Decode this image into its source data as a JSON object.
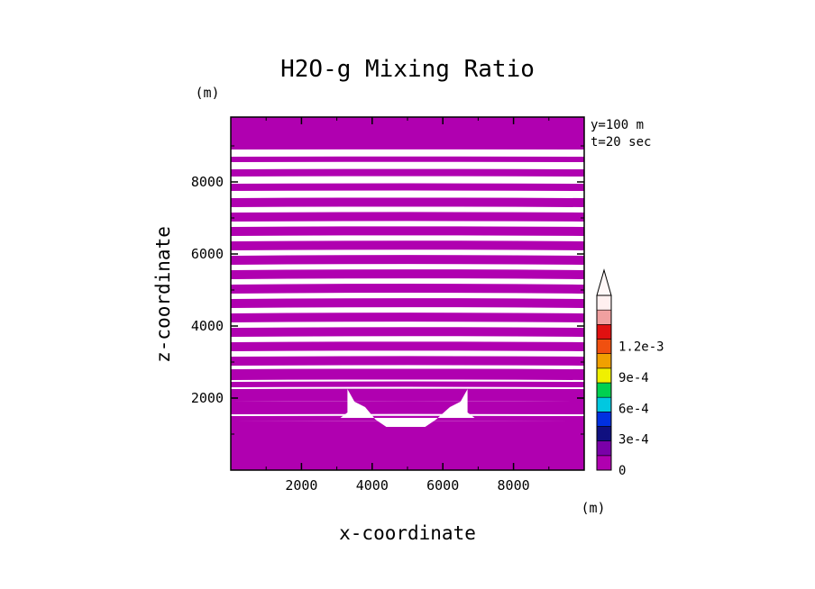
{
  "chart_data": {
    "type": "heatmap",
    "title": "H2O-g Mixing Ratio",
    "xlabel": "x-coordinate",
    "ylabel": "z-coordinate",
    "x_unit": "(m)",
    "y_unit": "(m)",
    "annotations": [
      "y=100 m",
      "t=20 sec"
    ],
    "xlim": [
      0,
      10000
    ],
    "ylim": [
      0,
      9800
    ],
    "x_ticks": [
      2000,
      4000,
      6000,
      8000
    ],
    "y_ticks": [
      2000,
      4000,
      6000,
      8000
    ],
    "x_tick_labels": [
      "2000",
      "4000",
      "6000",
      "8000"
    ],
    "y_tick_labels": [
      "2000",
      "4000",
      "6000",
      "8000"
    ],
    "bands": [
      {
        "z0": 0,
        "z1": 1350
      },
      {
        "z0": 1350,
        "z1": 1500
      },
      {
        "z0": 1550,
        "z1": 1900
      },
      {
        "z0": 1900,
        "z1": 2250
      },
      {
        "z0": 2300,
        "z1": 2450
      },
      {
        "z0": 2500,
        "z1": 2800
      },
      {
        "z0": 2900,
        "z1": 3150
      },
      {
        "z0": 3300,
        "z1": 3550
      },
      {
        "z0": 3700,
        "z1": 3950
      },
      {
        "z0": 4100,
        "z1": 4350
      },
      {
        "z0": 4500,
        "z1": 4750
      },
      {
        "z0": 4900,
        "z1": 5150
      },
      {
        "z0": 5300,
        "z1": 5550
      },
      {
        "z0": 5700,
        "z1": 5950
      },
      {
        "z0": 6100,
        "z1": 6350
      },
      {
        "z0": 6500,
        "z1": 6750
      },
      {
        "z0": 6900,
        "z1": 7150
      },
      {
        "z0": 7300,
        "z1": 7550
      },
      {
        "z0": 7750,
        "z1": 7950
      },
      {
        "z0": 8150,
        "z1": 8350
      },
      {
        "z0": 8550,
        "z1": 8700
      },
      {
        "z0": 8900,
        "z1": 9800
      }
    ],
    "hole_outline": [
      [
        3100,
        1450
      ],
      [
        3300,
        1600
      ],
      [
        3300,
        2250
      ],
      [
        3500,
        1900
      ],
      [
        3800,
        1750
      ],
      [
        4100,
        1400
      ],
      [
        4400,
        1200
      ],
      [
        5500,
        1200
      ],
      [
        5800,
        1400
      ],
      [
        6200,
        1750
      ],
      [
        6500,
        1900
      ],
      [
        6700,
        2250
      ],
      [
        6700,
        1600
      ],
      [
        6900,
        1450
      ]
    ],
    "field_color": "#b000b0",
    "colorbar": {
      "levels": [
        0,
        0.00015,
        0.0003,
        0.00045,
        0.0006,
        0.00075,
        0.0009,
        0.00105,
        0.0012,
        0.00135
      ],
      "colors": [
        "#b000b0",
        "#7a00a8",
        "#101080",
        "#0030e0",
        "#00c8e0",
        "#00d050",
        "#f0f000",
        "#f0a000",
        "#f05010",
        "#e01010",
        "#f0a0a0",
        "#fff0f0"
      ],
      "tick_labels": [
        "0",
        "3e-4",
        "6e-4",
        "9e-4",
        "1.2e-3"
      ],
      "tick_values": [
        0,
        0.0003,
        0.0006,
        0.0009,
        0.0012
      ]
    }
  }
}
